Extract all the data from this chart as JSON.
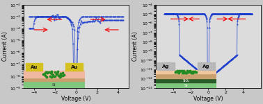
{
  "left_plot": {
    "xlabel": "Voltage (V)",
    "ylabel": "Current (A)",
    "xlim": [
      -5,
      5
    ],
    "ylim": [
      1e-09,
      0.01
    ],
    "xticks": [
      -4,
      -2,
      0,
      2,
      4
    ],
    "bg_color": "#dcdcdc"
  },
  "right_plot": {
    "xlabel": "Voltage (V)",
    "ylabel": "Current (A)",
    "xlim": [
      -6,
      6
    ],
    "ylim": [
      1e-13,
      0.0001
    ],
    "xticks": [
      -4,
      -2,
      0,
      2,
      4
    ],
    "bg_color": "#dcdcdc"
  },
  "curve_color": "#1a3ccc",
  "arrow_color": "#ee1111",
  "fig_bg": "#c8c8c8",
  "left_inset": {
    "si_color": "#7ec87e",
    "sio2_color": "#c8a06e",
    "moo3_color": "#f0b8a0",
    "au_color": "#d4c020",
    "dot_color": "#228b22",
    "si_label_color": "#333333",
    "au_label_color": "#111111"
  },
  "right_inset": {
    "si_color": "#7ec87e",
    "sio2_color": "#2a5c2a",
    "moo3_color": "#c8a06e",
    "top_color": "#f0c8a0",
    "ag_color": "#b8b8b8",
    "dot_color": "#228b22",
    "si_label_color": "#ffffff",
    "sio2_label_color": "#ffffff",
    "ag_label_color": "#111111"
  }
}
